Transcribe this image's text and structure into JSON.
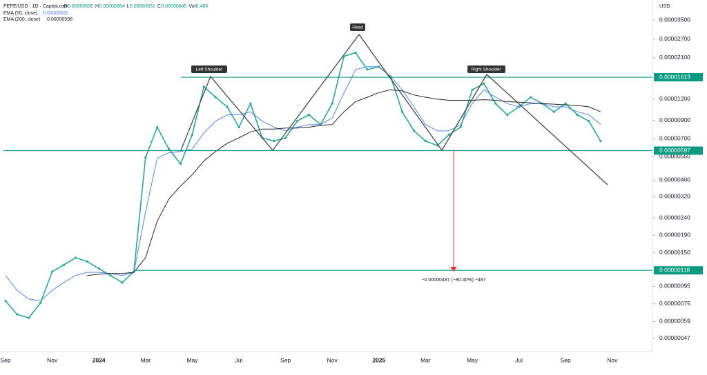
{
  "header": {
    "ohlcv": [
      {
        "key": "O",
        "value": "0.00000636"
      },
      {
        "key": "H",
        "value": "0.00000664"
      },
      {
        "key": "L",
        "value": "0.00000631"
      },
      {
        "key": "C",
        "value": "0.00000645"
      },
      {
        "key": "Vol",
        "value": "6.48K"
      }
    ]
  },
  "chart_data": {
    "type": "line",
    "y_unit": "USD",
    "log_scale": true,
    "grid": false,
    "categories": [
      "Sep",
      null,
      null,
      null,
      "Nov",
      null,
      null,
      null,
      "2024",
      null,
      null,
      null,
      "Mar",
      null,
      null,
      null,
      "May",
      null,
      null,
      null,
      "Jul",
      null,
      null,
      null,
      "Sep",
      null,
      null,
      null,
      "Nov",
      null,
      null,
      null,
      "2025",
      null,
      null,
      null,
      "Mar",
      null,
      null,
      null,
      "May",
      null,
      null,
      null,
      "Jul",
      null,
      null,
      null,
      "Sep",
      null,
      null,
      null,
      "Nov"
    ],
    "series": [
      {
        "name": "PEPE/USD · 1D · Capital.com",
        "color": "#26a69a",
        "values": [
          7.8e-07,
          6.5e-07,
          6.2e-07,
          7.6e-07,
          1.16e-06,
          1.27e-06,
          1.4e-06,
          1.33e-06,
          1.21e-06,
          1.1e-06,
          1e-06,
          1.16e-06,
          5.45e-06,
          8.2e-06,
          6.1e-06,
          5e-06,
          7.4e-06,
          1.42e-05,
          1.23e-05,
          1.08e-05,
          8.2e-06,
          1.13e-05,
          7.1e-06,
          6.8e-06,
          7.1e-06,
          8.9e-06,
          9.7e-06,
          8.5e-06,
          1.13e-05,
          2.14e-05,
          2.25e-05,
          1.79e-05,
          1.86e-05,
          1.63e-05,
          1.01e-05,
          7.8e-06,
          6.8e-06,
          6.4e-06,
          7.4e-06,
          8.2e-06,
          1.36e-05,
          1.48e-05,
          1.13e-05,
          9.7e-06,
          1.08e-05,
          1.23e-05,
          1.13e-05,
          1.01e-05,
          1.13e-05,
          9.7e-06,
          8.9e-06,
          6.8e-06,
          null
        ]
      },
      {
        "name": "EMA (50, close)",
        "legend_value": "0.00000832",
        "color": "#4f86ec",
        "values": [
          1.1e-06,
          9e-07,
          8e-07,
          7.8e-07,
          9e-07,
          1e-06,
          1.1e-06,
          1.15e-06,
          1.15e-06,
          1.13e-06,
          1.1e-06,
          1.15e-06,
          2.6e-06,
          5.4e-06,
          5.8e-06,
          5.9e-06,
          6.1e-06,
          7.6e-06,
          8.9e-06,
          9.7e-06,
          9.7e-06,
          1.01e-05,
          8.9e-06,
          8.2e-06,
          7.8e-06,
          8.2e-06,
          8.5e-06,
          8.5e-06,
          9.3e-06,
          1.3e-05,
          1.79e-05,
          1.86e-05,
          1.86e-05,
          1.63e-05,
          1.36e-05,
          1.08e-05,
          8.5e-06,
          7.8e-06,
          7.8e-06,
          8.5e-06,
          1.13e-05,
          1.36e-05,
          1.23e-05,
          1.13e-05,
          1.08e-05,
          1.13e-05,
          1.13e-05,
          1.08e-05,
          1.08e-05,
          1.01e-05,
          9.7e-06,
          8.5e-06,
          null
        ]
      },
      {
        "name": "EMA (200, close)",
        "legend_value": "0.00000998",
        "color": "#222222",
        "values": [
          null,
          null,
          null,
          null,
          null,
          null,
          null,
          1.1e-06,
          1.12e-06,
          1.13e-06,
          1.13e-06,
          1.15e-06,
          1.4e-06,
          2.3e-06,
          3.1e-06,
          3.7e-06,
          4.3e-06,
          5.2e-06,
          5.9e-06,
          6.6e-06,
          7.1e-06,
          7.7e-06,
          8e-06,
          8e-06,
          8.1e-06,
          8.1e-06,
          8.2e-06,
          8.4e-06,
          8.5e-06,
          1.01e-05,
          1.16e-05,
          1.23e-05,
          1.31e-05,
          1.36e-05,
          1.34e-05,
          1.27e-05,
          1.23e-05,
          1.2e-05,
          1.18e-05,
          1.18e-05,
          1.18e-05,
          1.19e-05,
          1.18e-05,
          1.16e-05,
          1.15e-05,
          1.14e-05,
          1.13e-05,
          1.12e-05,
          1.11e-05,
          1.1e-05,
          1.08e-05,
          1.01e-05,
          null
        ]
      }
    ],
    "ylim": [
      3.93e-07,
      4.59e-05
    ],
    "yticks": [
      {
        "value": 3.5e-05,
        "label": "0.00003500"
      },
      {
        "value": 2.7e-05,
        "label": "0.00002700"
      },
      {
        "value": 2.1e-05,
        "label": "0.00002100"
      },
      {
        "value": 1.2e-05,
        "label": "0.00001200"
      },
      {
        "value": 9e-06,
        "label": "0.00000900"
      },
      {
        "value": 7e-06,
        "label": "0.00000700"
      },
      {
        "value": 5.5e-06,
        "label": "0.00000550"
      },
      {
        "value": 4e-06,
        "label": "0.00000400"
      },
      {
        "value": 3.2e-06,
        "label": "0.00000320"
      },
      {
        "value": 2.4e-06,
        "label": "0.00000240"
      },
      {
        "value": 1.9e-06,
        "label": "0.00000190"
      },
      {
        "value": 1.5e-06,
        "label": "0.00000150"
      },
      {
        "value": 9.5e-07,
        "label": "0.00000095"
      },
      {
        "value": 7.5e-07,
        "label": "0.00000075"
      },
      {
        "value": 5.9e-07,
        "label": "0.00000059"
      },
      {
        "value": 4.7e-07,
        "label": "0.00000047"
      }
    ],
    "levels": [
      {
        "value": 1.613e-05,
        "label": "0.00001613",
        "color": "#089981"
      },
      {
        "value": 5.97e-06,
        "label": "0.00000597",
        "color": "#089981"
      },
      {
        "value": 1.18e-06,
        "label": "0.00000118",
        "color": "#089981"
      }
    ],
    "annotations": {
      "head": "Head",
      "left_shoulder": "Left Shoulder",
      "right_shoulder": "Right Shoulder",
      "measure": "−0.00000487 (−80.40%) −487"
    }
  }
}
